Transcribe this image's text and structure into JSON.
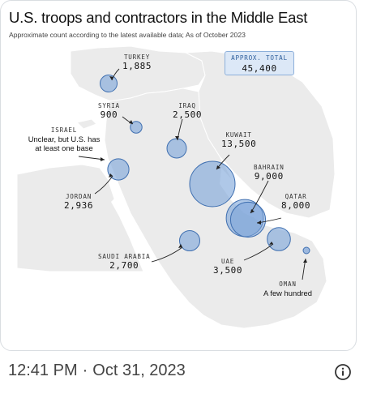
{
  "header": {
    "title": "U.S. troops and contractors in the Middle East",
    "subtitle": "Approximate count according to the latest available data; As of October 2023"
  },
  "total": {
    "label": "APPROX. TOTAL",
    "value": "45,400"
  },
  "locations": {
    "turkey": {
      "country": "TURKEY",
      "count": "1,885",
      "troops": 1885
    },
    "syria": {
      "country": "SYRIA",
      "count": "900",
      "troops": 900
    },
    "iraq": {
      "country": "IRAQ",
      "count": "2,500",
      "troops": 2500
    },
    "israel": {
      "country": "ISRAEL",
      "note": "Unclear, but U.S. has at least one base"
    },
    "kuwait": {
      "country": "KUWAIT",
      "count": "13,500",
      "troops": 13500
    },
    "bahrain": {
      "country": "BAHRAIN",
      "count": "9,000",
      "troops": 9000
    },
    "jordan": {
      "country": "JORDAN",
      "count": "2,936",
      "troops": 2936
    },
    "qatar": {
      "country": "QATAR",
      "count": "8,000",
      "troops": 8000
    },
    "saudi_arabia": {
      "country": "SAUDI ARABIA",
      "count": "2,700",
      "troops": 2700
    },
    "uae": {
      "country": "UAE",
      "count": "3,500",
      "troops": 3500
    },
    "oman": {
      "country": "OMAN",
      "note": "A few hundred"
    }
  },
  "colors": {
    "bubble_fill": "#7aa3d8",
    "bubble_stroke": "#3f6fb0",
    "land": "#ebebeb",
    "water": "#ffffff",
    "total_box": "#dce8f7"
  },
  "footer": {
    "time": "12:41 PM",
    "separator": "·",
    "date": "Oct 31, 2023"
  },
  "icons": {
    "info": "info-icon"
  }
}
